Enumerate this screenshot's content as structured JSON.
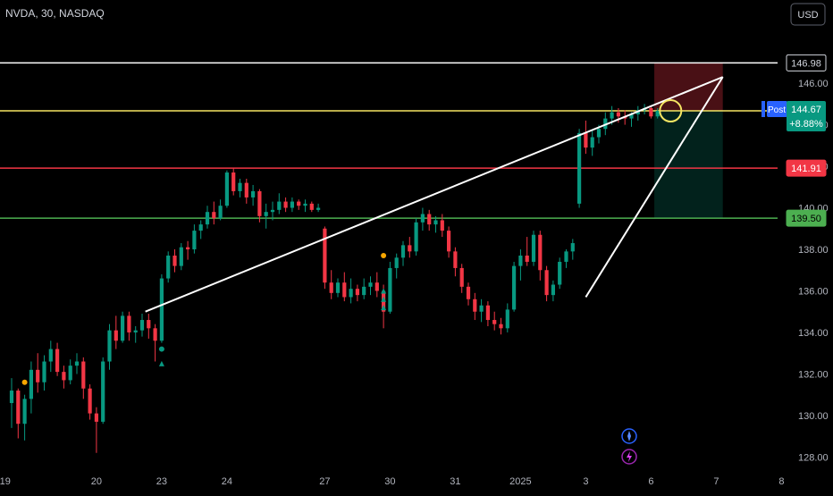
{
  "header": {
    "title": "NVDA, 30, NASDAQ",
    "currency": "USD"
  },
  "colors": {
    "background": "#000000",
    "up": "#089981",
    "down": "#f23645",
    "trendline": "#ffffff",
    "resistance": "#ffffff",
    "entry": "#f5e663",
    "stop": "#f23645",
    "target": "#4caf50",
    "highlight": "#f5e663"
  },
  "chart_data": {
    "type": "candlestick",
    "symbol": "NVDA",
    "interval": "30",
    "exchange": "NASDAQ",
    "ylim": [
      127.2,
      148.5
    ],
    "y_ticks": [
      "146.00",
      "144.00",
      "142.00",
      "140.00",
      "138.00",
      "136.00",
      "134.00",
      "132.00",
      "130.00",
      "128.00"
    ],
    "x_ticks": [
      "19",
      "20",
      "23",
      "24",
      "27",
      "30",
      "31",
      "2025",
      "3",
      "6",
      "7",
      "8"
    ],
    "x_tick_index": [
      -1,
      13,
      23,
      33,
      48,
      58,
      68,
      78,
      88,
      98,
      108,
      118
    ],
    "bar_count": 100,
    "candles": [
      [
        130.6,
        131.8,
        129.4,
        131.2
      ],
      [
        131.2,
        131.3,
        128.9,
        129.6
      ],
      [
        129.6,
        131.0,
        128.8,
        130.8
      ],
      [
        130.8,
        132.6,
        130.1,
        132.2
      ],
      [
        132.2,
        133.0,
        131.1,
        131.6
      ],
      [
        131.6,
        132.9,
        131.2,
        132.6
      ],
      [
        132.6,
        133.6,
        132.1,
        133.2
      ],
      [
        133.2,
        133.5,
        131.9,
        132.1
      ],
      [
        132.1,
        132.4,
        131.3,
        131.7
      ],
      [
        131.7,
        132.7,
        131.5,
        132.4
      ],
      [
        132.4,
        133.0,
        132.0,
        132.6
      ],
      [
        132.6,
        132.8,
        130.8,
        131.3
      ],
      [
        131.3,
        131.5,
        129.8,
        130.1
      ],
      [
        130.1,
        130.4,
        128.2,
        129.7
      ],
      [
        129.7,
        132.8,
        129.6,
        132.6
      ],
      [
        132.6,
        134.4,
        132.2,
        134.1
      ],
      [
        134.1,
        134.8,
        133.2,
        133.6
      ],
      [
        133.6,
        135.0,
        133.5,
        134.8
      ],
      [
        134.8,
        135.0,
        133.6,
        134.0
      ],
      [
        134.0,
        134.3,
        133.5,
        134.1
      ],
      [
        134.1,
        134.9,
        133.8,
        134.6
      ],
      [
        134.6,
        134.9,
        133.7,
        134.2
      ],
      [
        134.2,
        134.4,
        132.6,
        133.6
      ],
      [
        133.6,
        136.8,
        133.5,
        136.6
      ],
      [
        136.6,
        137.9,
        136.4,
        137.7
      ],
      [
        137.7,
        138.0,
        136.9,
        137.2
      ],
      [
        137.2,
        138.3,
        137.0,
        138.1
      ],
      [
        138.1,
        138.4,
        137.5,
        138.0
      ],
      [
        138.0,
        139.2,
        137.8,
        138.9
      ],
      [
        138.9,
        139.4,
        138.5,
        139.2
      ],
      [
        139.2,
        140.1,
        139.0,
        139.8
      ],
      [
        139.8,
        140.3,
        139.2,
        139.5
      ],
      [
        139.5,
        140.4,
        139.4,
        140.1
      ],
      [
        140.1,
        141.8,
        140.0,
        141.7
      ],
      [
        141.7,
        141.9,
        140.6,
        140.8
      ],
      [
        140.8,
        141.4,
        140.5,
        141.2
      ],
      [
        141.2,
        141.4,
        140.2,
        140.5
      ],
      [
        140.5,
        141.1,
        140.1,
        140.8
      ],
      [
        140.8,
        140.9,
        139.3,
        139.6
      ],
      [
        139.6,
        140.2,
        139.0,
        139.8
      ],
      [
        139.8,
        140.3,
        139.4,
        139.9
      ],
      [
        139.9,
        140.7,
        139.7,
        140.3
      ],
      [
        140.3,
        140.5,
        139.8,
        140.0
      ],
      [
        140.0,
        140.5,
        139.8,
        140.3
      ],
      [
        140.3,
        140.4,
        139.9,
        140.1
      ],
      [
        140.1,
        140.4,
        139.8,
        140.2
      ],
      [
        140.2,
        140.3,
        139.8,
        139.9
      ],
      [
        139.9,
        140.2,
        139.8,
        140.0
      ],
      [
        139.0,
        139.1,
        136.1,
        136.4
      ],
      [
        136.4,
        137.0,
        135.6,
        135.9
      ],
      [
        135.9,
        136.6,
        135.7,
        136.4
      ],
      [
        136.4,
        136.9,
        135.5,
        135.7
      ],
      [
        135.7,
        136.6,
        135.4,
        136.1
      ],
      [
        136.1,
        136.3,
        135.5,
        135.8
      ],
      [
        135.8,
        136.6,
        135.6,
        136.2
      ],
      [
        136.2,
        136.7,
        135.8,
        136.4
      ],
      [
        136.4,
        136.9,
        135.7,
        136.0
      ],
      [
        136.0,
        136.3,
        134.2,
        135.0
      ],
      [
        135.0,
        137.4,
        134.9,
        137.1
      ],
      [
        137.1,
        137.8,
        136.6,
        137.6
      ],
      [
        137.6,
        138.4,
        137.2,
        138.2
      ],
      [
        138.2,
        138.6,
        137.6,
        137.9
      ],
      [
        137.9,
        139.5,
        137.7,
        139.3
      ],
      [
        139.3,
        140.0,
        138.9,
        139.7
      ],
      [
        139.7,
        139.9,
        138.9,
        139.2
      ],
      [
        139.2,
        139.6,
        138.8,
        139.4
      ],
      [
        139.4,
        139.7,
        138.6,
        138.9
      ],
      [
        138.9,
        139.1,
        137.6,
        137.9
      ],
      [
        137.9,
        138.1,
        136.7,
        137.1
      ],
      [
        137.1,
        137.3,
        135.9,
        136.2
      ],
      [
        136.2,
        136.4,
        135.3,
        135.6
      ],
      [
        135.6,
        135.9,
        134.6,
        135.0
      ],
      [
        135.0,
        135.6,
        134.5,
        135.3
      ],
      [
        135.3,
        135.5,
        134.3,
        134.6
      ],
      [
        134.6,
        135.0,
        134.1,
        134.4
      ],
      [
        134.4,
        134.7,
        133.9,
        134.2
      ],
      [
        134.2,
        135.4,
        134.0,
        135.1
      ],
      [
        135.1,
        137.4,
        135.0,
        137.2
      ],
      [
        137.2,
        138.0,
        136.5,
        137.7
      ],
      [
        137.7,
        138.6,
        137.2,
        137.4
      ],
      [
        137.4,
        138.9,
        137.2,
        138.7
      ],
      [
        138.7,
        138.9,
        136.5,
        137.0
      ],
      [
        137.0,
        137.2,
        135.5,
        135.8
      ],
      [
        135.8,
        136.5,
        135.5,
        136.3
      ],
      [
        136.3,
        137.6,
        136.1,
        137.4
      ],
      [
        137.4,
        138.0,
        137.1,
        137.9
      ],
      [
        137.9,
        138.5,
        137.5,
        138.3
      ],
      [
        140.2,
        143.8,
        140.0,
        143.6
      ],
      [
        143.6,
        144.2,
        142.6,
        142.9
      ],
      [
        142.9,
        143.7,
        142.5,
        143.4
      ],
      [
        143.4,
        144.0,
        143.1,
        143.8
      ],
      [
        143.8,
        144.6,
        143.5,
        144.3
      ],
      [
        144.3,
        144.9,
        144.0,
        144.6
      ],
      [
        144.6,
        144.8,
        144.1,
        144.4
      ],
      [
        144.4,
        144.7,
        144.0,
        144.3
      ],
      [
        144.3,
        144.6,
        143.9,
        144.5
      ],
      [
        144.5,
        144.9,
        144.2,
        144.7
      ],
      [
        144.7,
        145.0,
        144.5,
        144.8
      ],
      [
        144.8,
        144.9,
        144.3,
        144.4
      ],
      [
        144.4,
        144.8,
        144.3,
        144.67
      ]
    ],
    "levels": [
      {
        "value": 146.98,
        "label": "146.98",
        "kind": "resistance"
      },
      {
        "value": 141.91,
        "label": "141.91",
        "kind": "stop"
      },
      {
        "value": 139.5,
        "label": "139.50",
        "kind": "target"
      }
    ],
    "last_price": {
      "value": 144.67,
      "label": "144.67",
      "change": "+8.88%",
      "tag": "Post"
    },
    "trendlines": [
      {
        "from": [
          20.5,
          135.0
        ],
        "to": [
          109.0,
          146.3
        ]
      },
      {
        "from": [
          88.0,
          135.7
        ],
        "to": [
          109.0,
          146.3
        ]
      }
    ],
    "position_zone": {
      "x_from": 98.5,
      "x_to": 109.0,
      "entry": 144.67,
      "top": 146.98,
      "bottom": 139.5
    },
    "highlight": {
      "x": 101.0,
      "y": 144.67
    },
    "markers": [
      {
        "x": 2,
        "y": 131.6,
        "kind": "dot-orange"
      },
      {
        "x": 23,
        "y": 133.2,
        "kind": "dot-green"
      },
      {
        "x": 23,
        "y": 132.5,
        "kind": "arrow-up"
      },
      {
        "x": 57,
        "y": 137.7,
        "kind": "dot-orange"
      },
      {
        "x": 57,
        "y": 136.0,
        "kind": "arrow-up"
      },
      {
        "x": 57,
        "y": 135.6,
        "kind": "arrow-up"
      },
      {
        "x": 57,
        "y": 135.2,
        "kind": "arrow-up"
      }
    ]
  }
}
